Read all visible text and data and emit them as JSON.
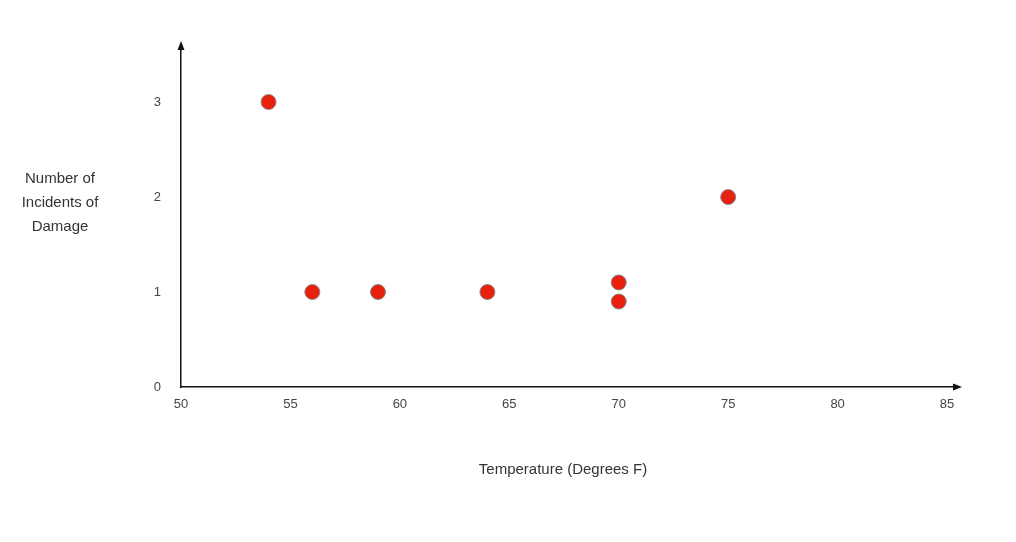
{
  "chart_data": {
    "type": "scatter",
    "xlabel": "Temperature (Degrees F)",
    "ylabel": "Number of Incidents of Damage",
    "x": [
      54,
      56,
      59,
      64,
      70,
      70,
      75
    ],
    "values": [
      3,
      1,
      1,
      1,
      1.1,
      0.9,
      2
    ],
    "color": "#e8200e",
    "marker": "circle",
    "grid": false,
    "legend": false,
    "xlim": [
      50,
      85.5
    ],
    "xticks": [
      50,
      55,
      60,
      65,
      70,
      75,
      80,
      85
    ],
    "ylim": [
      0,
      3.6
    ],
    "yticks": [
      0,
      1,
      2,
      3
    ]
  }
}
